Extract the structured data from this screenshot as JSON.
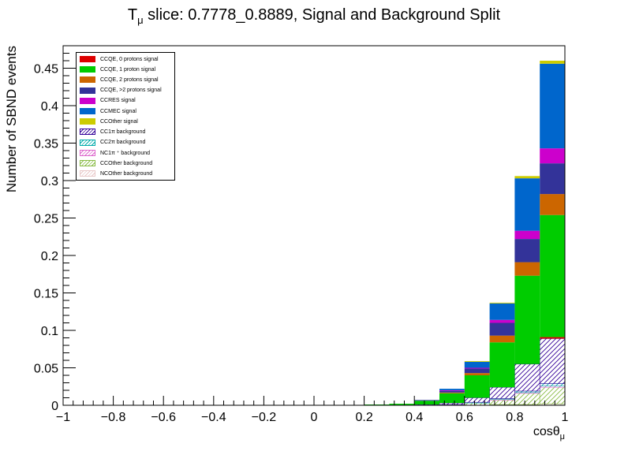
{
  "chart_data": {
    "type": "bar",
    "stacked": true,
    "title": "T_μ slice: 0.7778_0.8889, Signal and Background Split",
    "xlabel": "cosθ_μ",
    "ylabel": "Number of SBND events",
    "xlim": [
      -1,
      1
    ],
    "ylim": [
      0,
      0.48
    ],
    "xticks": [
      "−1",
      "−0.8",
      "−0.6",
      "−0.4",
      "−0.2",
      "0",
      "0.2",
      "0.4",
      "0.6",
      "0.8",
      "1"
    ],
    "yticks": [
      "0",
      "0.05",
      "0.1",
      "0.15",
      "0.2",
      "0.25",
      "0.3",
      "0.35",
      "0.4",
      "0.45"
    ],
    "bin_edges": [
      -1,
      -0.9,
      -0.8,
      -0.7,
      -0.6,
      -0.5,
      -0.4,
      -0.3,
      -0.2,
      -0.1,
      0,
      0.1,
      0.2,
      0.3,
      0.4,
      0.5,
      0.6,
      0.7,
      0.8,
      0.9,
      1.0
    ],
    "legend_position": "top-left",
    "series": [
      {
        "name": "NCOther background",
        "style": "hatch",
        "color": "#e8c8c8",
        "values": [
          0,
          0,
          0,
          0,
          0,
          0,
          0,
          0,
          0,
          0,
          0,
          0,
          0,
          0,
          0,
          0,
          0,
          0.001,
          0.001,
          0.002
        ]
      },
      {
        "name": "CCOther background",
        "style": "hatch",
        "color": "#88bb44",
        "values": [
          0,
          0,
          0,
          0,
          0,
          0,
          0,
          0,
          0,
          0,
          0,
          0,
          0,
          0,
          0,
          0.001,
          0.003,
          0.006,
          0.015,
          0.022
        ]
      },
      {
        "name": "NC1π ⁺ background",
        "style": "hatch",
        "color": "#dd66cc",
        "values": [
          0,
          0,
          0,
          0,
          0,
          0,
          0,
          0,
          0,
          0,
          0,
          0,
          0,
          0,
          0,
          0,
          0,
          0.001,
          0.001,
          0.002
        ]
      },
      {
        "name": "CC2π background",
        "style": "hatch",
        "color": "#00aaaa",
        "values": [
          0,
          0,
          0,
          0,
          0,
          0,
          0,
          0,
          0,
          0,
          0,
          0,
          0,
          0,
          0,
          0,
          0.001,
          0.001,
          0.002,
          0.003
        ]
      },
      {
        "name": "CC1π background",
        "style": "hatch",
        "color": "#330099",
        "values": [
          0,
          0,
          0,
          0,
          0,
          0,
          0,
          0,
          0,
          0,
          0,
          0,
          0,
          0,
          0.001,
          0.002,
          0.006,
          0.015,
          0.036,
          0.06
        ]
      },
      {
        "name": "CCQE, 0 protons signal",
        "style": "solid",
        "color": "#dd0000",
        "values": [
          0,
          0,
          0,
          0,
          0,
          0,
          0,
          0,
          0,
          0,
          0,
          0,
          0,
          0,
          0,
          0,
          0,
          0,
          0,
          0.002
        ]
      },
      {
        "name": "CCQE, 1 proton signal",
        "style": "solid",
        "color": "#00cc00",
        "values": [
          0,
          0,
          0,
          0,
          0,
          0,
          0,
          0,
          0,
          0,
          0,
          0,
          0.001,
          0.002,
          0.005,
          0.013,
          0.03,
          0.06,
          0.118,
          0.163
        ]
      },
      {
        "name": "CCQE, 2 protons signal",
        "style": "solid",
        "color": "#cc6600",
        "values": [
          0,
          0,
          0,
          0,
          0,
          0,
          0,
          0,
          0,
          0,
          0,
          0,
          0,
          0,
          0,
          0.001,
          0.003,
          0.009,
          0.018,
          0.028
        ]
      },
      {
        "name": "CCQE, >2 protons signal",
        "style": "solid",
        "color": "#333399",
        "values": [
          0,
          0,
          0,
          0,
          0,
          0,
          0,
          0,
          0,
          0,
          0,
          0,
          0,
          0,
          0.001,
          0.002,
          0.006,
          0.017,
          0.031,
          0.041
        ]
      },
      {
        "name": "CCRES signal",
        "style": "solid",
        "color": "#cc00cc",
        "values": [
          0,
          0,
          0,
          0,
          0,
          0,
          0,
          0,
          0,
          0,
          0,
          0,
          0,
          0,
          0,
          0.001,
          0.001,
          0.004,
          0.011,
          0.02
        ]
      },
      {
        "name": "CCMEC signal",
        "style": "solid",
        "color": "#0066cc",
        "values": [
          0,
          0,
          0,
          0,
          0,
          0,
          0,
          0,
          0,
          0,
          0,
          0,
          0,
          0,
          0,
          0.002,
          0.008,
          0.022,
          0.07,
          0.113
        ]
      },
      {
        "name": "CCOther signal",
        "style": "solid",
        "color": "#cccc00",
        "values": [
          0,
          0,
          0,
          0,
          0,
          0,
          0,
          0,
          0,
          0,
          0,
          0,
          0,
          0,
          0,
          0,
          0.001,
          0.001,
          0.003,
          0.004
        ]
      }
    ],
    "legend_order": [
      "CCQE, 0 protons signal",
      "CCQE, 1 proton signal",
      "CCQE, 2 protons signal",
      "CCQE, >2 protons signal",
      "CCRES signal",
      "CCMEC signal",
      "CCOther signal",
      "CC1π background",
      "CC2π background",
      "NC1π ⁺  background",
      "CCOther background",
      "NCOther background"
    ]
  }
}
